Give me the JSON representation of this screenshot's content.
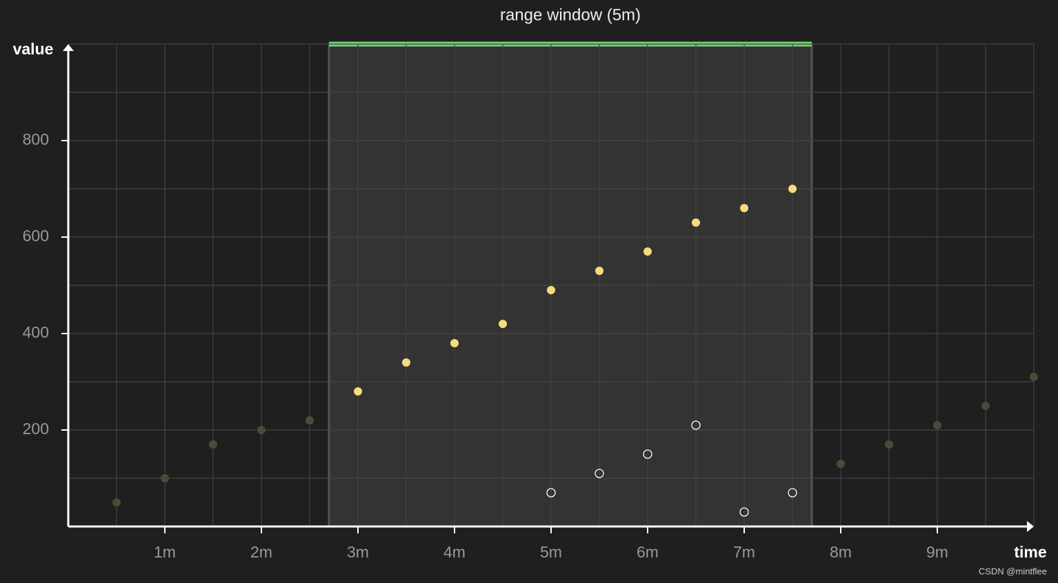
{
  "chart_data": {
    "type": "scatter",
    "title": "range window (5m)",
    "x_label": "time",
    "y_label": "value",
    "xlim": [
      0,
      10
    ],
    "ylim": [
      0,
      1000
    ],
    "xticks": [
      {
        "value": 1,
        "label": "1m"
      },
      {
        "value": 2,
        "label": "2m"
      },
      {
        "value": 3,
        "label": "3m"
      },
      {
        "value": 4,
        "label": "4m"
      },
      {
        "value": 5,
        "label": "5m"
      },
      {
        "value": 6,
        "label": "6m"
      },
      {
        "value": 7,
        "label": "7m"
      },
      {
        "value": 8,
        "label": "8m"
      },
      {
        "value": 9,
        "label": "9m"
      }
    ],
    "yticks": [
      200,
      400,
      600,
      800
    ],
    "minor_xticks": [
      0.5,
      1.5,
      2.5,
      3.5,
      4.5,
      5.5,
      6.5,
      7.5,
      8.5,
      9.5,
      10
    ],
    "minor_yticks": [
      100,
      300,
      500,
      700,
      900,
      1000
    ],
    "grid": true,
    "window": [
      2.7,
      7.7
    ],
    "window_color": "#6fd36f",
    "series": [
      {
        "color": "#4d4a38",
        "style": "filled",
        "x": [
          0.5,
          1,
          1.5,
          2,
          2.5
        ],
        "values": [
          50,
          100,
          170,
          200,
          220
        ]
      },
      {
        "color": "#f5dc7f",
        "style": "filled",
        "x": [
          3,
          3.5,
          4,
          4.5,
          5,
          5.5,
          6,
          6.5,
          7,
          7.5
        ],
        "values": [
          280,
          340,
          380,
          420,
          490,
          530,
          570,
          630,
          660,
          700
        ]
      },
      {
        "color": "#4d4a38",
        "style": "filled",
        "x": [
          8,
          8.5,
          9,
          9.5,
          10
        ],
        "values": [
          130,
          170,
          210,
          250,
          310
        ]
      },
      {
        "color": "#ffffff",
        "style": "hollow",
        "x": [
          5,
          5.5,
          6,
          6.5,
          7,
          7.5
        ],
        "values": [
          70,
          110,
          150,
          210,
          30,
          70
        ]
      }
    ],
    "watermark": "CSDN @mintflee"
  }
}
